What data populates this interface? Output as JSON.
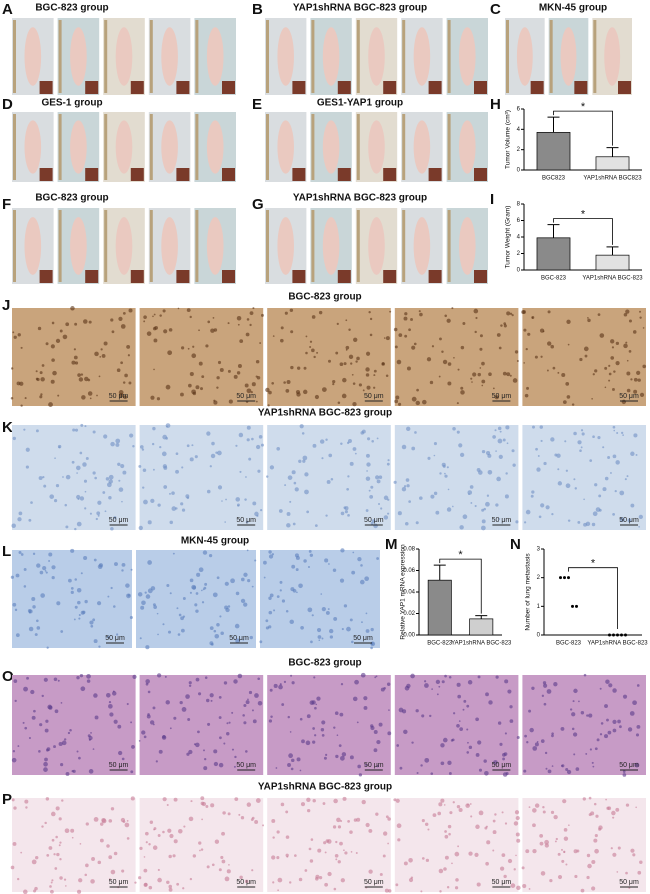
{
  "panels": [
    {
      "label": "A",
      "title": "BGC-823 group"
    },
    {
      "label": "B",
      "title": "YAP1shRNA BGC-823 group"
    },
    {
      "label": "C",
      "title": "MKN-45 group"
    },
    {
      "label": "D",
      "title": "GES-1 group"
    },
    {
      "label": "E",
      "title": "GES1-YAP1 group"
    },
    {
      "label": "F",
      "title": "BGC-823 group"
    },
    {
      "label": "G",
      "title": "YAP1shRNA BGC-823 group"
    },
    {
      "label": "J",
      "title": "BGC-823 group"
    },
    {
      "label": "K",
      "title": "YAP1shRNA BGC-823 group"
    },
    {
      "label": "L",
      "title": "MKN-45 group"
    },
    {
      "label": "O",
      "title": "BGC-823 group"
    },
    {
      "label": "P",
      "title": "YAP1shRNA BGC-823 group"
    }
  ],
  "scale_bar": "50 μm",
  "chart_data": [
    {
      "type": "bar",
      "label": "H",
      "ylabel": "Tumor Volume (cm³)",
      "categories": [
        "BGC823",
        "YAP1shRNA BGC823"
      ],
      "values": [
        3.7,
        1.3
      ],
      "errors": [
        1.5,
        0.9
      ],
      "colors": [
        "#8a8a8a",
        "#e2e2e2"
      ],
      "ylim": [
        0,
        6
      ],
      "yticks": [
        0,
        2,
        4,
        6
      ],
      "annotation": "*"
    },
    {
      "type": "bar",
      "label": "I",
      "ylabel": "Tumor Weight (Gram)",
      "categories": [
        "BGC-823",
        "YAP1shRNA BGC-823"
      ],
      "values": [
        3.9,
        1.8
      ],
      "errors": [
        1.6,
        1.0
      ],
      "colors": [
        "#8a8a8a",
        "#e2e2e2"
      ],
      "ylim": [
        0,
        8
      ],
      "yticks": [
        0,
        2,
        4,
        6,
        8
      ],
      "annotation": "*"
    },
    {
      "type": "bar",
      "label": "M",
      "ylabel": "Relative YAP1 mRNA expression",
      "categories": [
        "BGC-823",
        "YAP1shRNA BGC-823"
      ],
      "values": [
        0.051,
        0.015
      ],
      "errors": [
        0.014,
        0.003
      ],
      "colors": [
        "#8a8a8a",
        "#cfcfcf"
      ],
      "ylim": [
        0,
        0.08
      ],
      "yticks": [
        {
          "value": 0,
          "label": "0.00"
        },
        {
          "value": 0.02,
          "label": "0.02"
        },
        {
          "value": 0.04,
          "label": "0.04"
        },
        {
          "value": 0.06,
          "label": "0.06"
        },
        {
          "value": 0.08,
          "label": "0.08"
        }
      ],
      "annotation": "*"
    },
    {
      "type": "scatter",
      "label": "N",
      "ylabel": "Number of lung metastasis",
      "categories": [
        "BGC-823",
        "YAP1shRNA BGC-823"
      ],
      "values": [
        [
          2,
          2,
          2,
          1,
          1
        ],
        [
          0,
          0,
          0,
          0,
          0
        ]
      ],
      "color": "#000000",
      "ylim": [
        0,
        3
      ],
      "yticks": [
        0,
        1,
        2,
        3
      ],
      "annotation": "*"
    }
  ]
}
